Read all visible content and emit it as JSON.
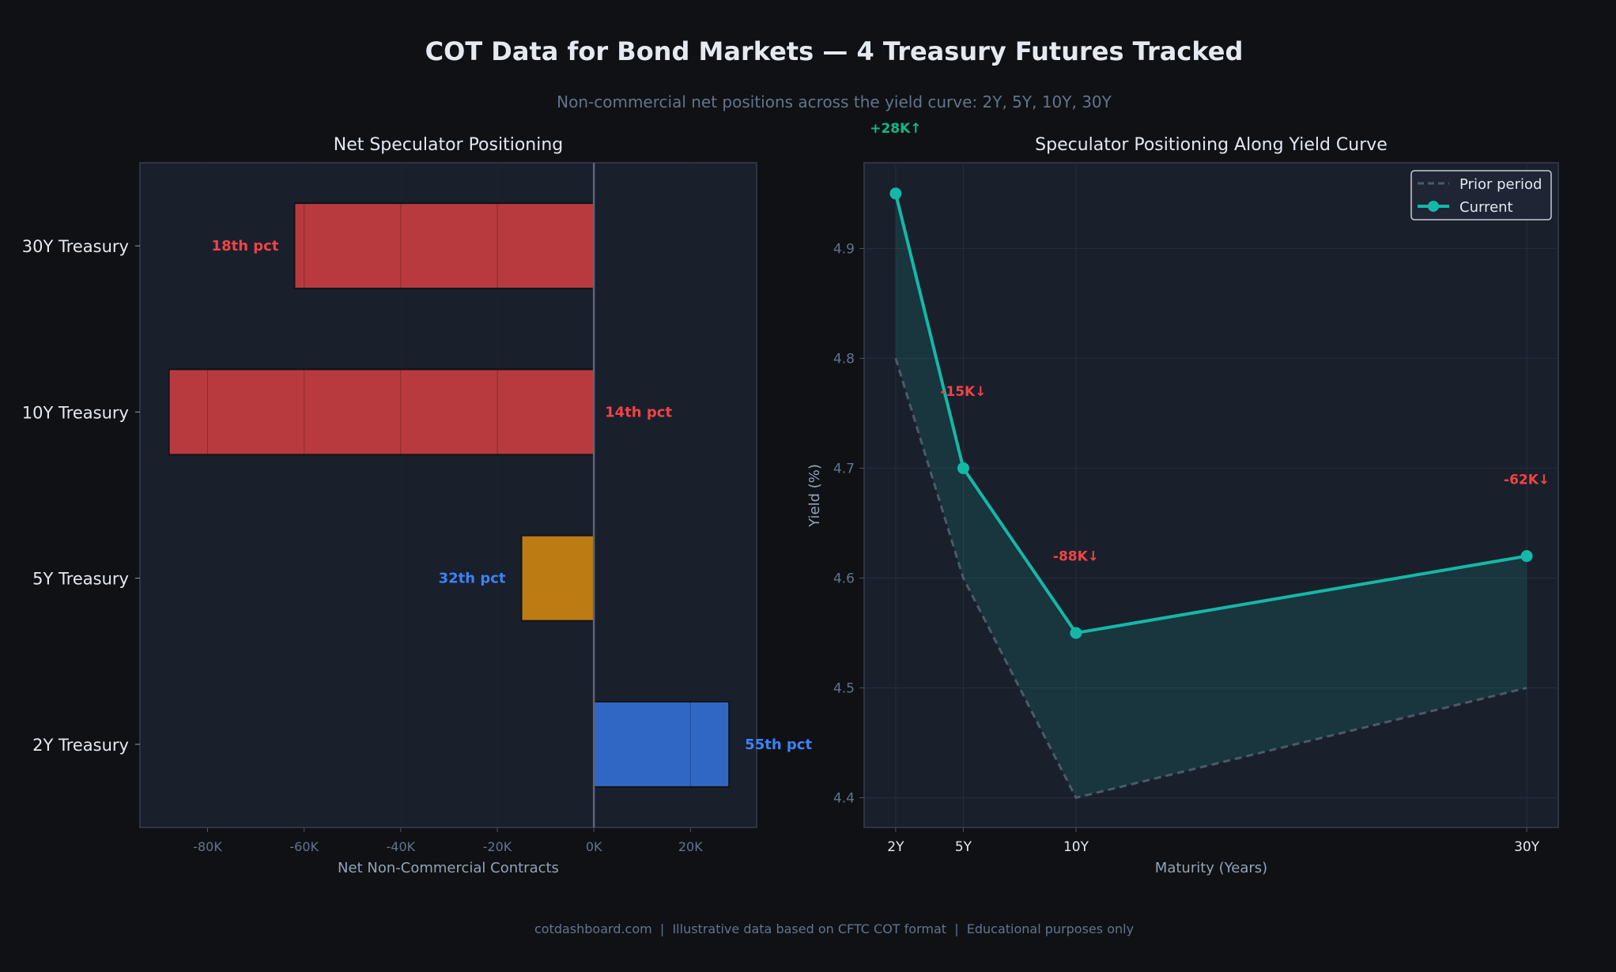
{
  "title": "COT Data for Bond Markets — 4 Treasury Futures Tracked",
  "subtitle": "Non-commercial net positions across the yield curve: 2Y, 5Y, 10Y, 30Y",
  "footer": "cotdashboard.com  |  Illustrative data based on CFTC COT format  |  Educational purposes only",
  "colors": {
    "background": "#0f1115",
    "panel": "#1a1f2c",
    "negative_bar": "#b83a3f",
    "neutral_bar": "#bc7c13",
    "positive_bar": "#3167c4",
    "red_text": "#ef4444",
    "blue_text": "#3b82f6",
    "green_text": "#10b981",
    "current_line": "#14b8a6",
    "prior_line": "#4b5a6b"
  },
  "chart_data": [
    {
      "type": "bar",
      "orientation": "horizontal",
      "title": "Net Speculator Positioning",
      "xlabel": "Net Non-Commercial Contracts",
      "ylabel": "",
      "categories": [
        "2Y Treasury",
        "5Y Treasury",
        "10Y Treasury",
        "30Y Treasury"
      ],
      "values": [
        28000,
        -15000,
        -88000,
        -62000
      ],
      "bar_colors": [
        "#3167c4",
        "#bc7c13",
        "#b83a3f",
        "#b83a3f"
      ],
      "data_labels": [
        "55th pct",
        "32th pct",
        "14th pct",
        "18th pct"
      ],
      "data_label_colors": [
        "#3b82f6",
        "#3b82f6",
        "#ef4444",
        "#ef4444"
      ],
      "xticks": [
        -80000,
        -60000,
        -40000,
        -20000,
        0,
        20000
      ],
      "xtick_labels": [
        "-80K",
        "-60K",
        "-40K",
        "-20K",
        "0K",
        "20K"
      ],
      "xlim": [
        -94000,
        33700
      ],
      "grid": true
    },
    {
      "type": "line",
      "title": "Speculator Positioning Along Yield Curve",
      "xlabel": "Maturity (Years)",
      "ylabel": "Yield (%)",
      "x": [
        2,
        5,
        10,
        30
      ],
      "xtick_labels": [
        "2Y",
        "5Y",
        "10Y",
        "30Y"
      ],
      "series": [
        {
          "name": "Prior period",
          "values": [
            4.8,
            4.6,
            4.4,
            4.5
          ],
          "style": "dashed"
        },
        {
          "name": "Current",
          "values": [
            4.95,
            4.7,
            4.55,
            4.62
          ],
          "style": "solid-markers"
        }
      ],
      "fill_between": true,
      "annotations": [
        {
          "x": 2,
          "y": 5.02,
          "text": "+28K↑",
          "color": "#10b981"
        },
        {
          "x": 5,
          "y": 4.77,
          "text": "-15K↓",
          "color": "#ef4444"
        },
        {
          "x": 10,
          "y": 4.62,
          "text": "-88K↓",
          "color": "#ef4444"
        },
        {
          "x": 30,
          "y": 4.69,
          "text": "-62K↓",
          "color": "#ef4444"
        }
      ],
      "yticks": [
        4.4,
        4.5,
        4.6,
        4.7,
        4.8,
        4.9
      ],
      "ytick_labels": [
        "4.4",
        "4.5",
        "4.6",
        "4.7",
        "4.8",
        "4.9"
      ],
      "xlim": [
        0.6,
        31.4
      ],
      "ylim": [
        4.373,
        4.978
      ],
      "grid": true,
      "legend": "top-right"
    }
  ]
}
